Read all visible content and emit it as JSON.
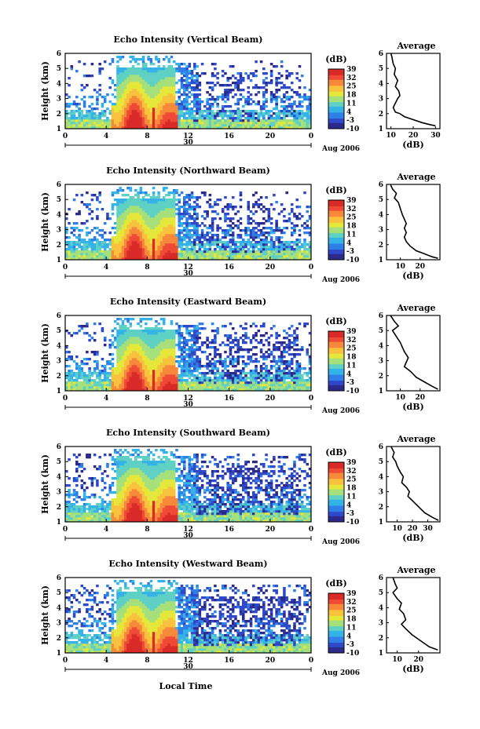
{
  "colors": {
    "colormap": [
      "#2b2a8a",
      "#2f49c8",
      "#2f7fe6",
      "#35b2e8",
      "#5ed0c4",
      "#a6e07a",
      "#e5e83a",
      "#f9c23c",
      "#f7893a",
      "#ee4a35",
      "#d92a28"
    ],
    "axis": "#000000",
    "background": "#ffffff"
  },
  "shared": {
    "height_label": "Height (km)",
    "colorbar_unit": "(dB)",
    "colorbar_ticks": [
      "39",
      "32",
      "25",
      "18",
      "11",
      "4",
      "-3",
      "-10"
    ],
    "avg_title": "Average",
    "avg_xlabel": "(dB)",
    "date_label": "Aug 2006",
    "date_mark": "30",
    "x_ticks": [
      "0",
      "4",
      "8",
      "12",
      "16",
      "20",
      "0"
    ],
    "y_ticks": [
      "1",
      "2",
      "3",
      "4",
      "5",
      "6"
    ],
    "bottom_label": "Local Time"
  },
  "chart_data": [
    {
      "type": "heatmap",
      "title": "Echo Intensity (Vertical Beam)",
      "x_range_hours": [
        0,
        24
      ],
      "y_range_km": [
        1,
        6
      ],
      "colorbar_range_db": [
        -10,
        39
      ],
      "average_profile": {
        "xlim": [
          8,
          32
        ],
        "xticks": [
          "10",
          "20",
          "30"
        ],
        "x": [
          10,
          10.5,
          11,
          12,
          11.5,
          13,
          12,
          13.5,
          14,
          13,
          12,
          11,
          12,
          14,
          16,
          20,
          24,
          28,
          30
        ],
        "y": [
          6.0,
          5.7,
          5.3,
          5.0,
          4.6,
          4.2,
          3.8,
          3.5,
          3.2,
          3.0,
          2.7,
          2.4,
          2.1,
          2.0,
          1.8,
          1.6,
          1.4,
          1.25,
          1.2
        ]
      }
    },
    {
      "type": "heatmap",
      "title": "Echo Intensity (Northward Beam)",
      "x_range_hours": [
        0,
        24
      ],
      "y_range_km": [
        1,
        6
      ],
      "colorbar_range_db": [
        -10,
        39
      ],
      "average_profile": {
        "xlim": [
          3,
          30
        ],
        "xticks": [
          "10",
          "20"
        ],
        "x": [
          5,
          6,
          8,
          7,
          9,
          10,
          11,
          12,
          13,
          12,
          13,
          12,
          13,
          15,
          18,
          22,
          26,
          29
        ],
        "y": [
          6.0,
          5.7,
          5.4,
          5.1,
          4.8,
          4.4,
          4.0,
          3.7,
          3.4,
          3.1,
          2.8,
          2.5,
          2.2,
          1.9,
          1.6,
          1.4,
          1.2,
          1.1
        ]
      }
    },
    {
      "type": "heatmap",
      "title": "Echo Intensity (Eastward Beam)",
      "x_range_hours": [
        0,
        24
      ],
      "y_range_km": [
        1,
        6
      ],
      "colorbar_range_db": [
        -10,
        39
      ],
      "average_profile": {
        "xlim": [
          3,
          30
        ],
        "xticks": [
          "10",
          "20"
        ],
        "x": [
          5,
          7,
          9,
          6,
          8,
          10,
          11,
          12,
          14,
          13,
          12,
          15,
          18,
          22,
          26,
          29
        ],
        "y": [
          6.0,
          5.6,
          5.3,
          5.0,
          4.6,
          4.2,
          3.9,
          3.6,
          3.2,
          2.9,
          2.6,
          2.3,
          1.9,
          1.6,
          1.3,
          1.1
        ]
      }
    },
    {
      "type": "heatmap",
      "title": "Echo Intensity (Southward Beam)",
      "x_range_hours": [
        0,
        24
      ],
      "y_range_km": [
        1,
        6
      ],
      "colorbar_range_db": [
        -10,
        39
      ],
      "average_profile": {
        "xlim": [
          3,
          38
        ],
        "xticks": [
          "10",
          "20",
          "30"
        ],
        "x": [
          6,
          8,
          7,
          9,
          10,
          12,
          14,
          13,
          16,
          18,
          17,
          20,
          24,
          28,
          33,
          37
        ],
        "y": [
          6.0,
          5.6,
          5.3,
          5.0,
          4.7,
          4.3,
          4.0,
          3.6,
          3.3,
          3.0,
          2.7,
          2.4,
          2.0,
          1.6,
          1.3,
          1.1
        ]
      }
    },
    {
      "type": "heatmap",
      "title": "Echo Intensity (Westward Beam)",
      "x_range_hours": [
        0,
        24
      ],
      "y_range_km": [
        1,
        6
      ],
      "colorbar_range_db": [
        -10,
        39
      ],
      "average_profile": {
        "xlim": [
          5,
          30
        ],
        "xticks": [
          "10",
          "20"
        ],
        "x": [
          8,
          9,
          10,
          8,
          10,
          12,
          11,
          13,
          14,
          12,
          14,
          17,
          21,
          25,
          29
        ],
        "y": [
          6.0,
          5.6,
          5.3,
          5.0,
          4.6,
          4.3,
          3.9,
          3.6,
          3.2,
          2.9,
          2.6,
          2.2,
          1.8,
          1.4,
          1.2
        ]
      }
    }
  ]
}
